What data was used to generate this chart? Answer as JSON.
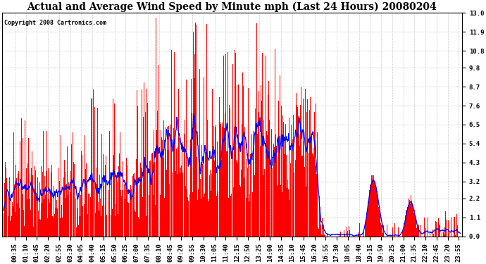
{
  "title": "Actual and Average Wind Speed by Minute mph (Last 24 Hours) 20080204",
  "copyright": "Copyright 2008 Cartronics.com",
  "yticks": [
    0.0,
    1.1,
    2.2,
    3.2,
    4.3,
    5.4,
    6.5,
    7.6,
    8.7,
    9.8,
    10.8,
    11.9,
    13.0
  ],
  "ylim": [
    0.0,
    13.0
  ],
  "bar_color": "#FF0000",
  "line_color": "#0000FF",
  "bg_color": "#FFFFFF",
  "grid_color": "#C0C0C0",
  "title_fontsize": 10,
  "tick_fontsize": 6.5,
  "copyright_fontsize": 6,
  "label_times": [
    "00:35",
    "01:10",
    "01:45",
    "02:20",
    "02:55",
    "03:30",
    "04:05",
    "04:40",
    "05:15",
    "05:50",
    "06:25",
    "07:00",
    "07:35",
    "08:10",
    "08:45",
    "09:20",
    "09:55",
    "10:30",
    "11:05",
    "11:40",
    "12:15",
    "12:50",
    "13:25",
    "14:00",
    "14:35",
    "15:10",
    "15:45",
    "16:20",
    "16:55",
    "17:30",
    "18:05",
    "18:40",
    "19:15",
    "19:50",
    "20:25",
    "21:00",
    "21:35",
    "22:10",
    "22:45",
    "23:20",
    "23:55"
  ]
}
